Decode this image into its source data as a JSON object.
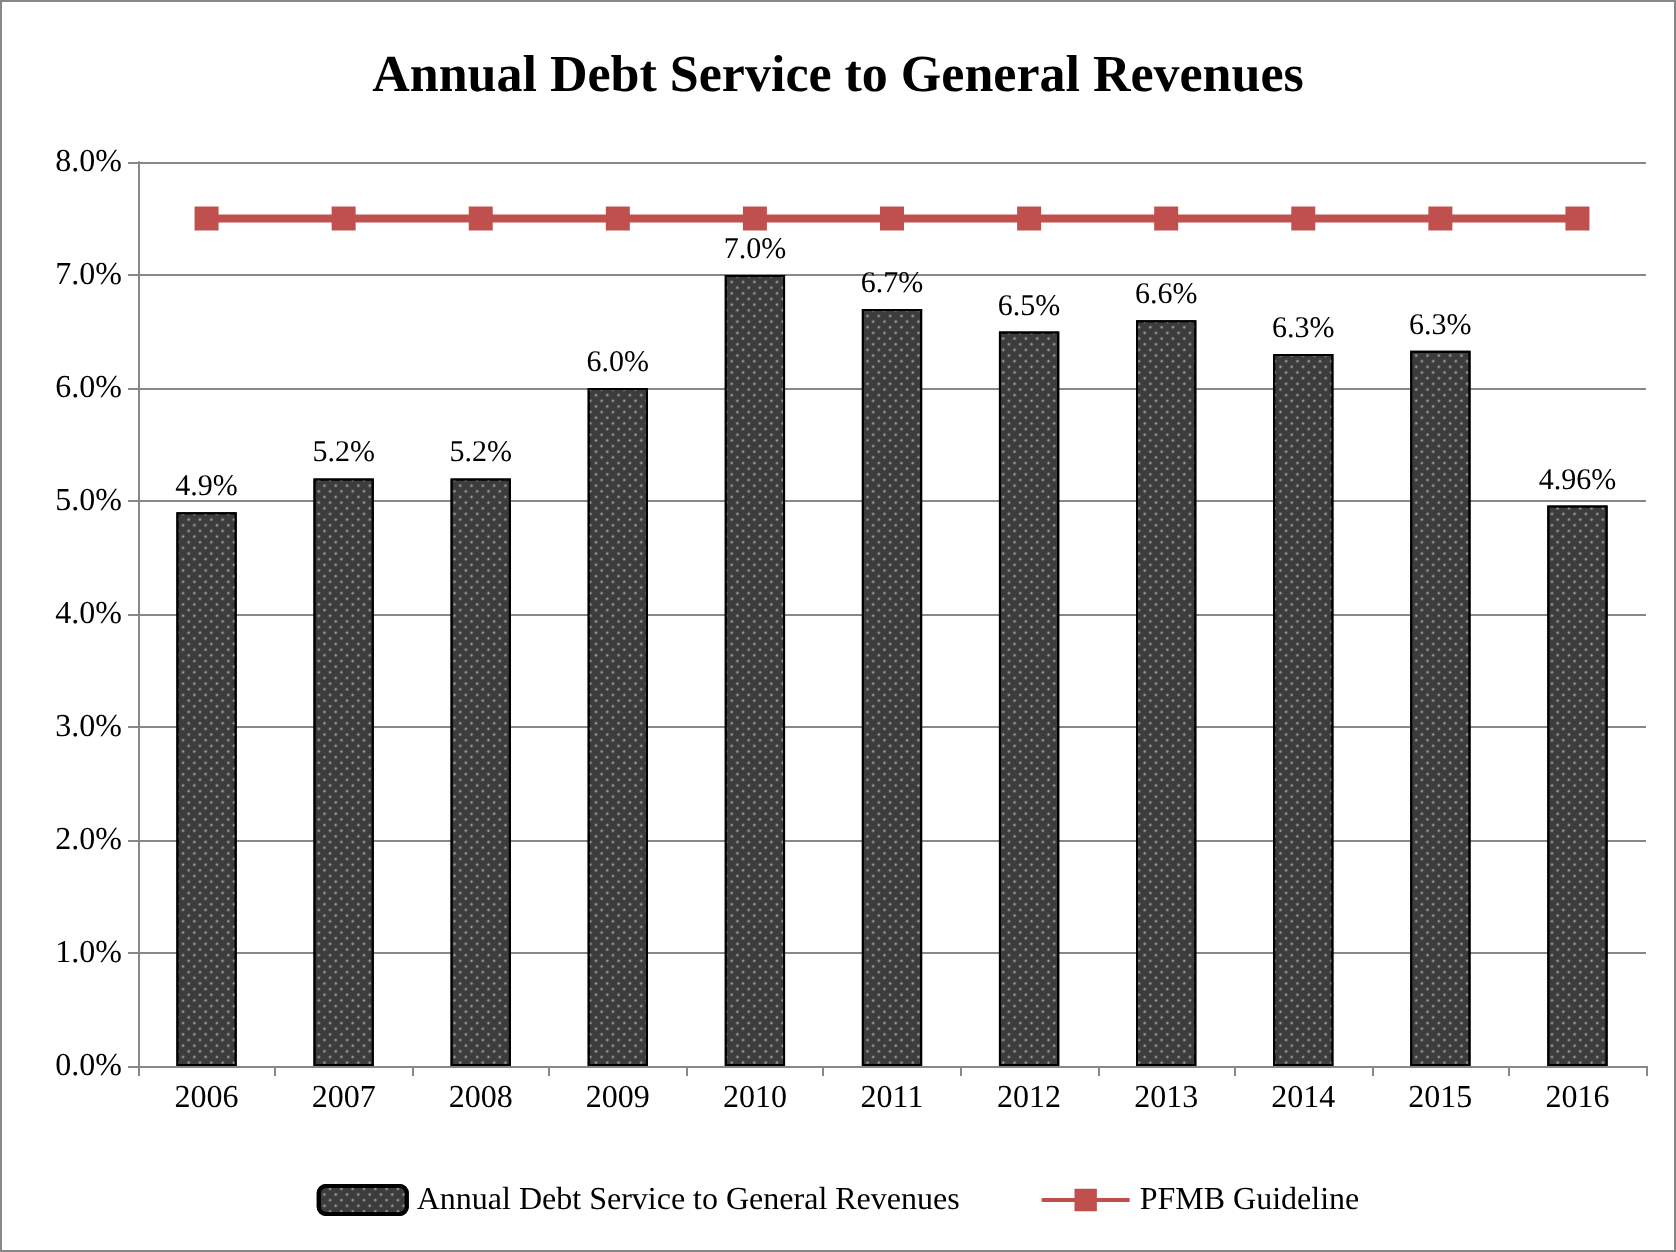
{
  "chart_data": {
    "type": "bar",
    "title": "Annual Debt Service to General Revenues",
    "categories": [
      "2006",
      "2007",
      "2008",
      "2009",
      "2010",
      "2011",
      "2012",
      "2013",
      "2014",
      "2015",
      "2016"
    ],
    "series": [
      {
        "name": "Annual Debt Service to General Revenues",
        "color": "#3c3c3c",
        "values": [
          4.9,
          5.2,
          5.2,
          6.0,
          7.0,
          6.7,
          6.5,
          6.6,
          6.3,
          6.33,
          4.96
        ],
        "value_labels": [
          "4.9%",
          "5.2%",
          "5.2%",
          "6.0%",
          "7.0%",
          "6.7%",
          "6.5%",
          "6.6%",
          "6.3%",
          "6.3%",
          "4.96%"
        ]
      },
      {
        "name": "PFMB Guideline",
        "type": "line",
        "color": "#c0504d",
        "marker": "square",
        "values": [
          7.5,
          7.5,
          7.5,
          7.5,
          7.5,
          7.5,
          7.5,
          7.5,
          7.5,
          7.5,
          7.5
        ]
      }
    ],
    "ylim": [
      0,
      8
    ],
    "yticks": [
      {
        "value": 0,
        "label": "0.0%"
      },
      {
        "value": 1,
        "label": "1.0%"
      },
      {
        "value": 2,
        "label": "2.0%"
      },
      {
        "value": 3,
        "label": "3.0%"
      },
      {
        "value": 4,
        "label": "4.0%"
      },
      {
        "value": 5,
        "label": "5.0%"
      },
      {
        "value": 6,
        "label": "6.0%"
      },
      {
        "value": 7,
        "label": "7.0%"
      },
      {
        "value": 8,
        "label": "8.0%"
      }
    ],
    "grid": "y",
    "legend": "bottom"
  }
}
